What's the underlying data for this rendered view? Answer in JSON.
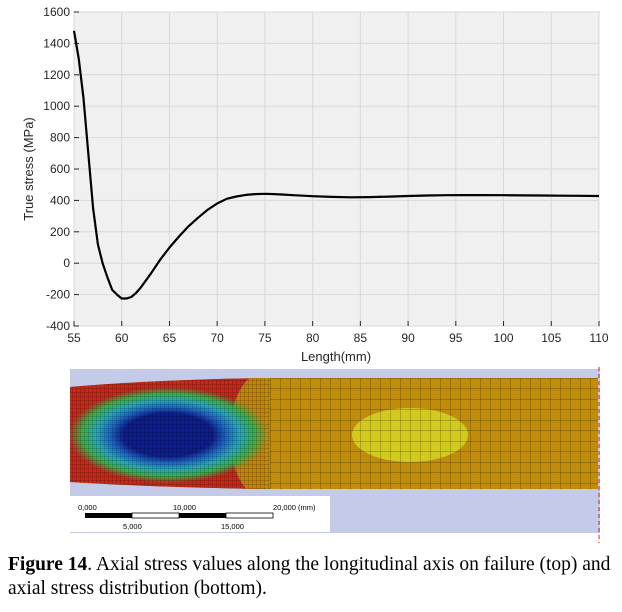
{
  "chart_data": {
    "type": "line",
    "xlabel": "Length(mm)",
    "ylabel": "True stress (MPa)",
    "xlim": [
      55,
      110
    ],
    "ylim": [
      -400,
      1600
    ],
    "xticks": [
      55,
      60,
      65,
      70,
      75,
      80,
      85,
      90,
      95,
      100,
      105,
      110
    ],
    "yticks": [
      -400,
      -200,
      0,
      200,
      400,
      600,
      800,
      1000,
      1200,
      1400,
      1600
    ],
    "grid": true,
    "series": [
      {
        "color": "#000000",
        "x": [
          55,
          55.5,
          56,
          56.5,
          57,
          57.5,
          58,
          58.5,
          59,
          59.5,
          60,
          60.5,
          61,
          61.5,
          62,
          63,
          64,
          65,
          66,
          67,
          68,
          69,
          70,
          71,
          72,
          73,
          74,
          75,
          76,
          77,
          78,
          80,
          82,
          84,
          86,
          88,
          90,
          92,
          94,
          96,
          98,
          100,
          102,
          104,
          106,
          108,
          110
        ],
        "y": [
          1480,
          1300,
          1050,
          700,
          350,
          120,
          0,
          -90,
          -170,
          -200,
          -225,
          -225,
          -215,
          -190,
          -155,
          -70,
          20,
          100,
          170,
          235,
          290,
          340,
          380,
          410,
          425,
          435,
          440,
          442,
          440,
          437,
          433,
          427,
          422,
          420,
          421,
          424,
          428,
          431,
          433,
          434,
          434,
          433,
          432,
          431,
          430,
          429,
          428
        ]
      }
    ]
  },
  "fea": {
    "scale_labels": [
      "0,000",
      "10,000",
      "20,000 (mm)",
      "5,000",
      "15,000"
    ],
    "colors": {
      "background": "#c3cbe9",
      "tension": "#c08d0b",
      "high_tension": "#d2ca1f",
      "red": "#c32818",
      "compression": "#0d1d8f"
    }
  },
  "caption": {
    "label": "Figure 14",
    "text": ". Axial stress values along the longitudinal axis on failure (top) and axial stress distribution (bottom)."
  }
}
